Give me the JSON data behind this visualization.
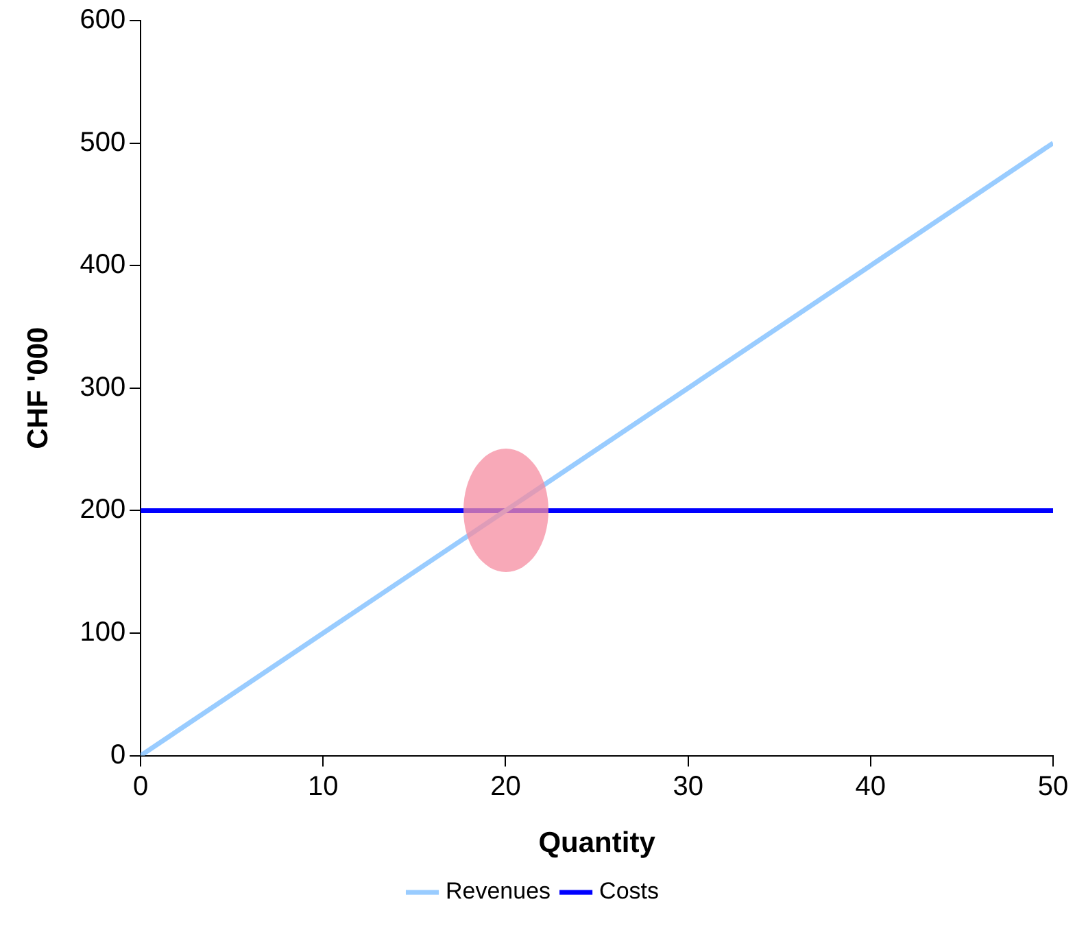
{
  "chart_data": {
    "type": "line",
    "xlabel": "Quantity",
    "ylabel": "CHF '000",
    "x": [
      0,
      50
    ],
    "xlim": [
      0,
      50
    ],
    "xticks": [
      0,
      10,
      20,
      30,
      40,
      50
    ],
    "ylim": [
      0,
      600
    ],
    "yticks": [
      0,
      100,
      200,
      300,
      400,
      500,
      600
    ],
    "series": [
      {
        "name": "Revenues",
        "color": "#99ccff",
        "values": [
          0,
          500
        ]
      },
      {
        "name": "Costs",
        "color": "#0000ff",
        "values": [
          200,
          200
        ]
      }
    ],
    "grid": false,
    "legend": "bottom",
    "marker": "none",
    "line_style": "solid"
  }
}
